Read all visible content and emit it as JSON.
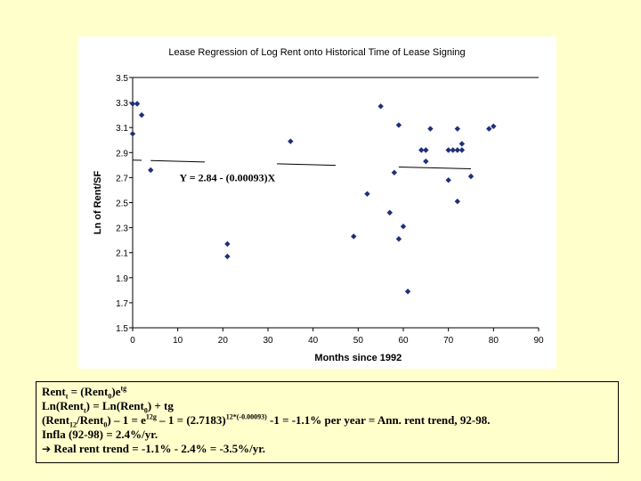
{
  "chart_data": {
    "type": "scatter",
    "title": "Lease Regression of Log Rent onto Historical Time of Lease Signing",
    "xlabel": "Months since 1992",
    "ylabel": "Ln of Rent/SF",
    "xlim": [
      0,
      90
    ],
    "ylim": [
      1.5,
      3.5
    ],
    "x_ticks": [
      "0",
      "10",
      "20",
      "30",
      "40",
      "50",
      "60",
      "70",
      "80",
      "90"
    ],
    "y_ticks": [
      "1.5",
      "1.7",
      "1.9",
      "2.1",
      "2.3",
      "2.5",
      "2.7",
      "2.9",
      "3.1",
      "3.3",
      "3.5"
    ],
    "grid": false,
    "equation_label": "Y = 2.84 - (0.00093)X",
    "trend": {
      "intercept": 2.84,
      "slope": -0.00093
    },
    "points": [
      [
        0,
        3.29
      ],
      [
        0,
        3.05
      ],
      [
        1,
        3.29
      ],
      [
        2,
        3.2
      ],
      [
        4,
        2.76
      ],
      [
        21,
        2.17
      ],
      [
        21,
        2.07
      ],
      [
        35,
        2.99
      ],
      [
        49,
        2.23
      ],
      [
        52,
        2.57
      ],
      [
        55,
        3.27
      ],
      [
        57,
        2.42
      ],
      [
        58,
        2.74
      ],
      [
        59,
        3.12
      ],
      [
        59,
        2.21
      ],
      [
        60,
        2.31
      ],
      [
        61,
        1.79
      ],
      [
        64,
        2.92
      ],
      [
        65,
        2.92
      ],
      [
        65,
        2.83
      ],
      [
        66,
        3.09
      ],
      [
        70,
        2.92
      ],
      [
        70,
        2.68
      ],
      [
        71,
        2.92
      ],
      [
        72,
        2.92
      ],
      [
        72,
        3.09
      ],
      [
        72,
        2.51
      ],
      [
        73,
        2.92
      ],
      [
        73,
        2.97
      ],
      [
        75,
        2.71
      ],
      [
        79,
        3.09
      ],
      [
        80,
        3.11
      ]
    ]
  },
  "notes": {
    "line1": {
      "a": "Rent",
      "a_sub": "t",
      "b": " = (Rent",
      "b_sub": "0",
      "c": ")e",
      "c_sup": "tg"
    },
    "line2": {
      "a": "Ln(Rent",
      "a_sub": "t",
      "b": ") = Ln(Rent",
      "b_sub": "0",
      "c": ") +  tg"
    },
    "line3": {
      "a": "(Rent",
      "a_sub": "12",
      "b": "/Rent",
      "b_sub": "0",
      "c": ") – 1 = e",
      "c_sup": "12g",
      "d": " – 1 = (2.7183)",
      "d_sup": "12*(-0.00093)",
      "e": " -1 = -1.1% per year = Ann. rent trend, 92-98."
    },
    "line4": "Infla (92-98) = 2.4%/yr.",
    "arrow_icon": "right-arrow-icon",
    "line5": " Real rent trend = -1.1% - 2.4% = -3.5%/yr."
  }
}
